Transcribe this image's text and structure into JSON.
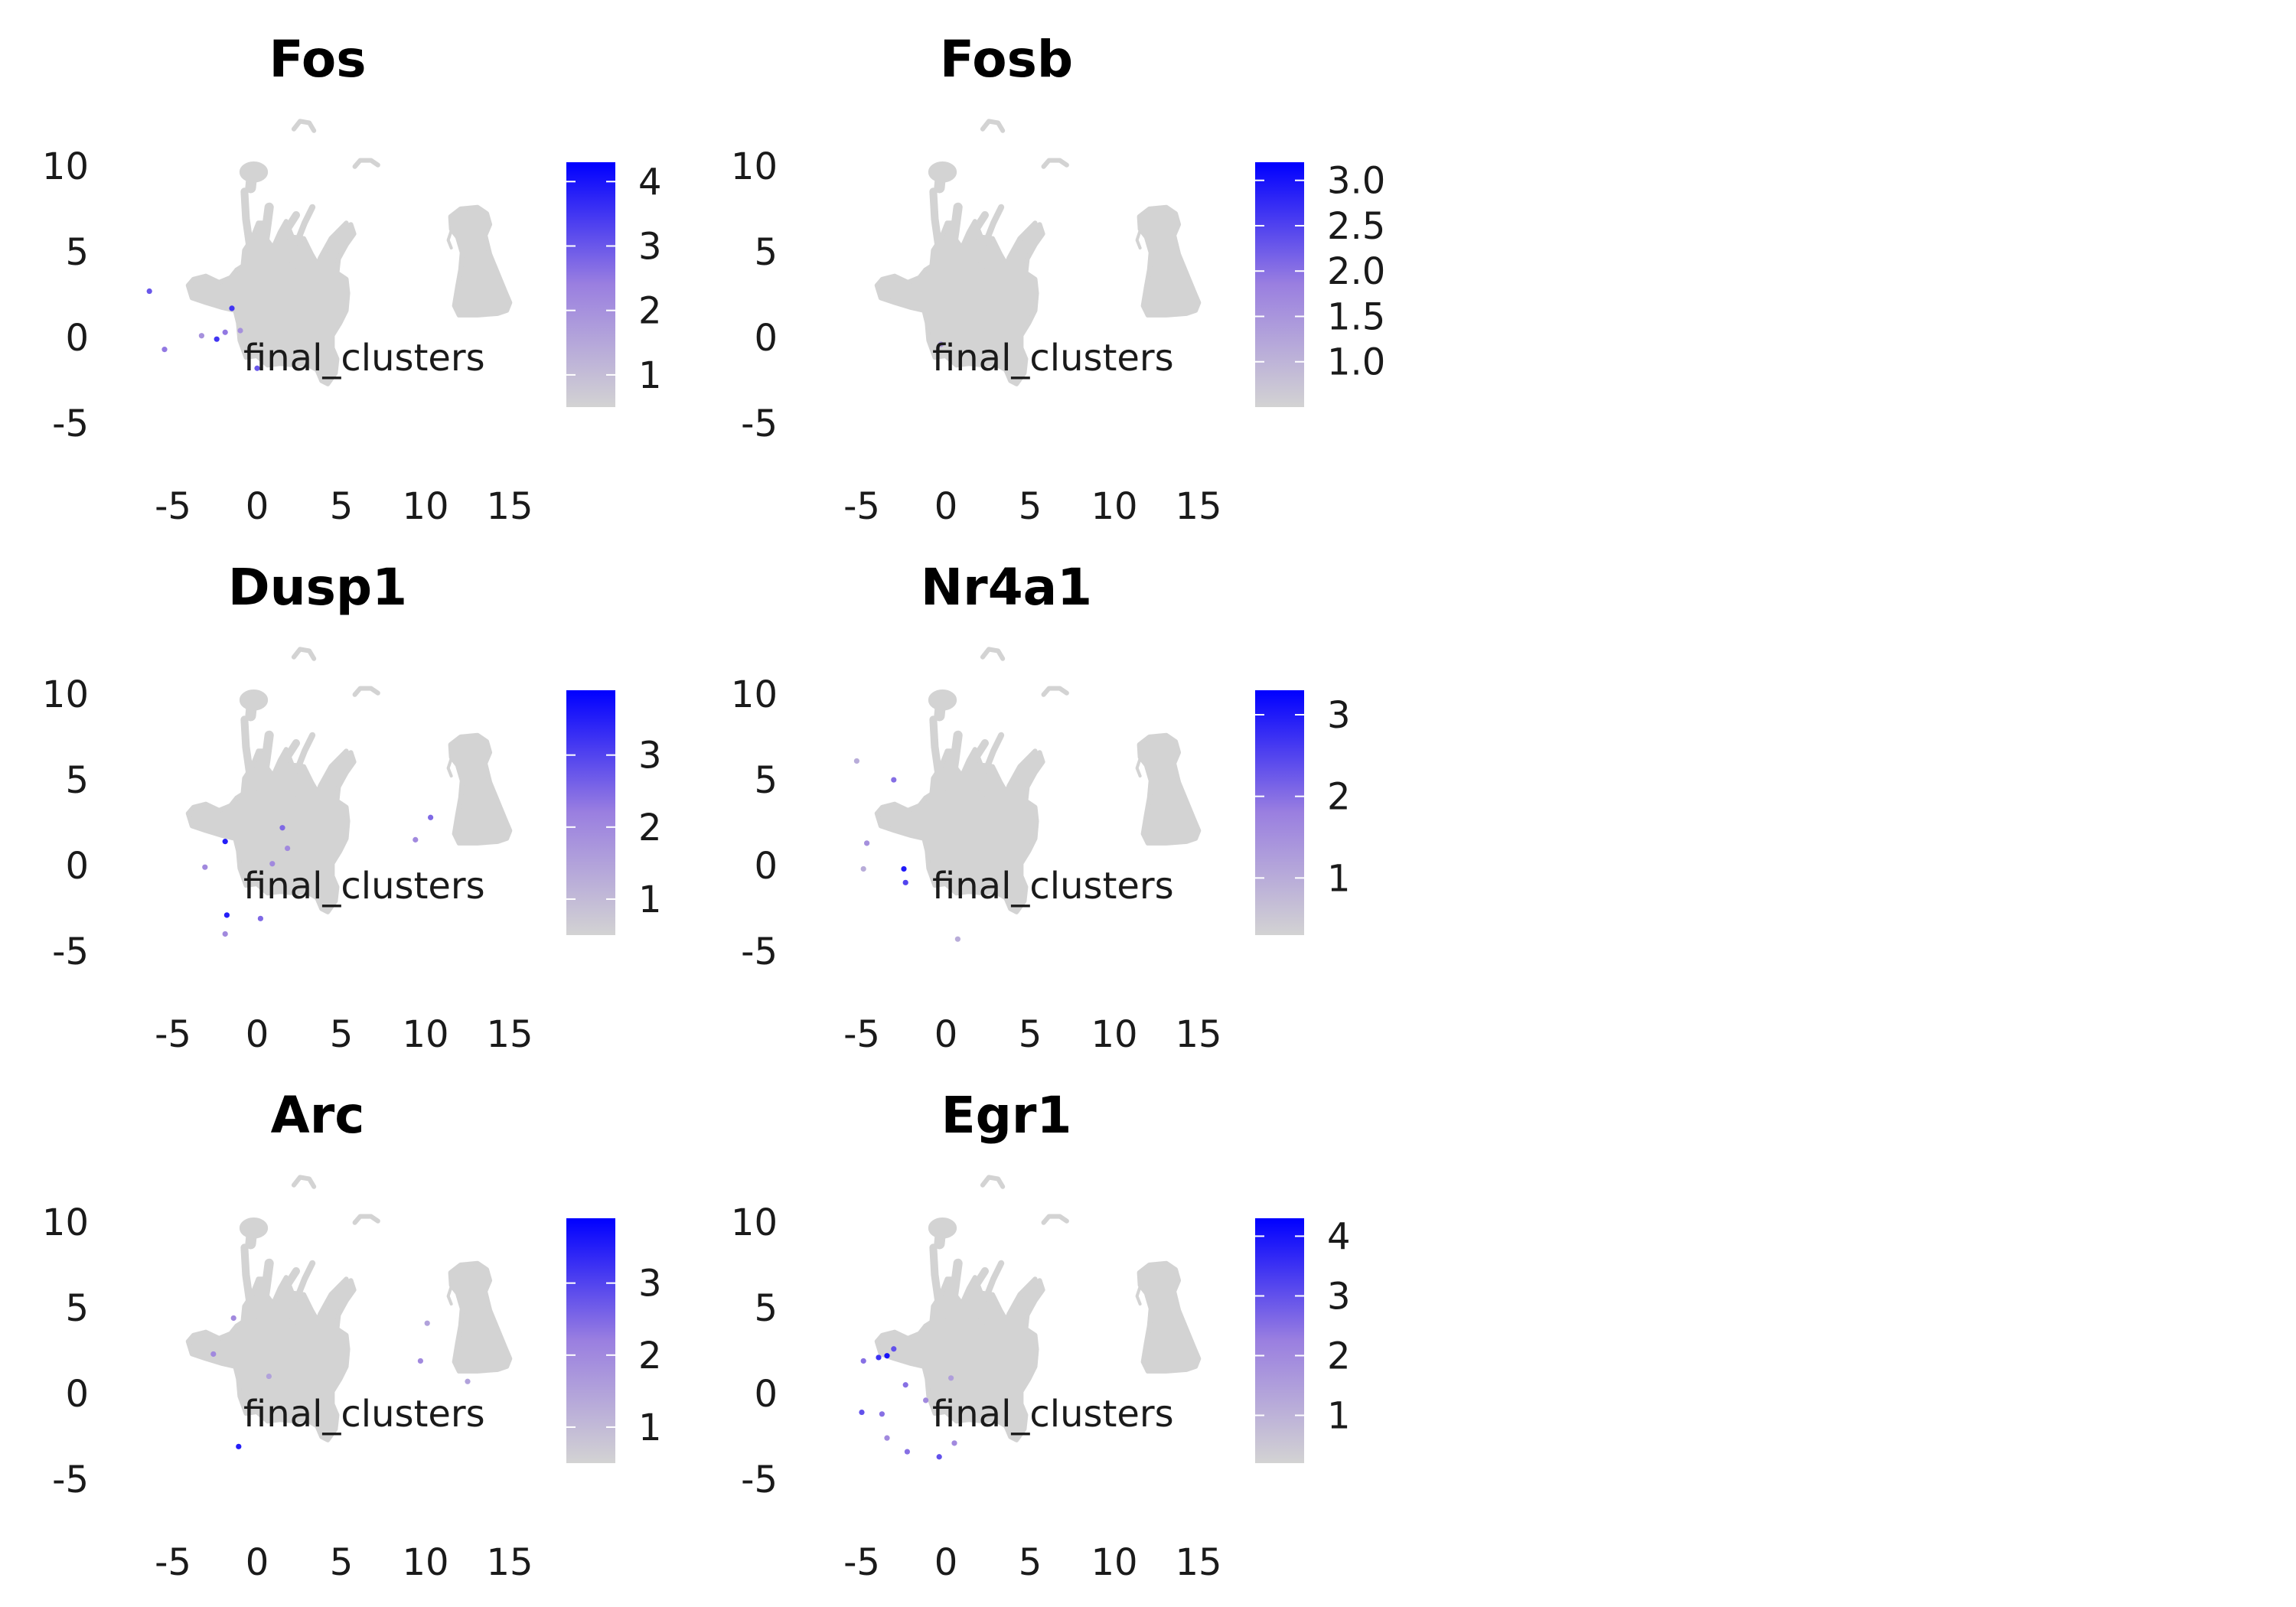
{
  "chart_data": [
    {
      "type": "scatter",
      "title": "Fos",
      "annotation": "final_clusters",
      "x_ticks": [
        "-5",
        "0",
        "5",
        "10",
        "15"
      ],
      "y_ticks": [
        "10",
        "5",
        "0",
        "-5"
      ],
      "colorbar": {
        "min": 0.5,
        "max": 4.3,
        "ticks": [
          "1",
          "2",
          "3",
          "4"
        ],
        "low_color": "#d3d3d3",
        "high_color": "#0000ff"
      },
      "expressing_points": [
        {
          "x": -6.4,
          "y": 2.7,
          "v": 3.0
        },
        {
          "x": -5.5,
          "y": -0.7,
          "v": 2.5
        },
        {
          "x": -2.4,
          "y": -0.1,
          "v": 3.5
        },
        {
          "x": -1.9,
          "y": 0.3,
          "v": 2.5
        },
        {
          "x": -1.5,
          "y": 1.7,
          "v": 3.5
        },
        {
          "x": -1.0,
          "y": 0.4,
          "v": 2.0
        },
        {
          "x": 0.0,
          "y": -1.8,
          "v": 3.0
        },
        {
          "x": -3.3,
          "y": 0.1,
          "v": 2.0
        }
      ]
    },
    {
      "type": "scatter",
      "title": "Fosb",
      "annotation": "final_clusters",
      "x_ticks": [
        "-5",
        "0",
        "5",
        "10",
        "15"
      ],
      "y_ticks": [
        "10",
        "5",
        "0",
        "-5"
      ],
      "colorbar": {
        "min": 0.5,
        "max": 3.2,
        "ticks": [
          "1.0",
          "1.5",
          "2.0",
          "2.5",
          "3.0"
        ],
        "low_color": "#d3d3d3",
        "high_color": "#0000ff"
      },
      "expressing_points": [
        {
          "x": -0.3,
          "y": -0.4,
          "v": 1.5
        }
      ]
    },
    {
      "type": "scatter",
      "title": "Dusp1",
      "annotation": "final_clusters",
      "x_ticks": [
        "-5",
        "0",
        "5",
        "10",
        "15"
      ],
      "y_ticks": [
        "10",
        "5",
        "0",
        "-5"
      ],
      "colorbar": {
        "min": 0.5,
        "max": 3.9,
        "ticks": [
          "1",
          "2",
          "3"
        ],
        "low_color": "#d3d3d3",
        "high_color": "#0000ff"
      },
      "expressing_points": [
        {
          "x": -3.1,
          "y": -0.1,
          "v": 2.0
        },
        {
          "x": -1.9,
          "y": 1.4,
          "v": 3.5
        },
        {
          "x": -1.8,
          "y": -2.9,
          "v": 3.5
        },
        {
          "x": -1.9,
          "y": -4.0,
          "v": 2.0
        },
        {
          "x": 0.2,
          "y": -3.1,
          "v": 2.5
        },
        {
          "x": 1.5,
          "y": 2.2,
          "v": 2.5
        },
        {
          "x": 1.8,
          "y": 1.0,
          "v": 2.0
        },
        {
          "x": 0.9,
          "y": 0.1,
          "v": 2.0
        },
        {
          "x": 10.3,
          "y": 2.8,
          "v": 2.5
        },
        {
          "x": 9.4,
          "y": 1.5,
          "v": 2.0
        }
      ]
    },
    {
      "type": "scatter",
      "title": "Nr4a1",
      "annotation": "final_clusters",
      "x_ticks": [
        "-5",
        "0",
        "5",
        "10",
        "15"
      ],
      "y_ticks": [
        "10",
        "5",
        "0",
        "-5"
      ],
      "colorbar": {
        "min": 0.3,
        "max": 3.3,
        "ticks": [
          "1",
          "2",
          "3"
        ],
        "low_color": "#d3d3d3",
        "high_color": "#0000ff"
      },
      "expressing_points": [
        {
          "x": -2.5,
          "y": -0.2,
          "v": 3.0
        },
        {
          "x": -2.4,
          "y": -1.0,
          "v": 2.5
        },
        {
          "x": -3.1,
          "y": 5.0,
          "v": 2.0
        },
        {
          "x": -4.7,
          "y": 1.3,
          "v": 1.5
        },
        {
          "x": -5.3,
          "y": 6.1,
          "v": 1.0
        },
        {
          "x": -4.9,
          "y": -0.2,
          "v": 1.0
        },
        {
          "x": 0.7,
          "y": -4.3,
          "v": 1.0
        }
      ]
    },
    {
      "type": "scatter",
      "title": "Arc",
      "annotation": "final_clusters",
      "x_ticks": [
        "-5",
        "0",
        "5",
        "10",
        "15"
      ],
      "y_ticks": [
        "10",
        "5",
        "0",
        "-5"
      ],
      "colorbar": {
        "min": 0.5,
        "max": 3.9,
        "ticks": [
          "1",
          "2",
          "3"
        ],
        "low_color": "#d3d3d3",
        "high_color": "#0000ff"
      },
      "expressing_points": [
        {
          "x": -1.1,
          "y": -3.1,
          "v": 3.5
        },
        {
          "x": -2.6,
          "y": 2.3,
          "v": 2.0
        },
        {
          "x": -1.4,
          "y": 4.4,
          "v": 2.0
        },
        {
          "x": 0.7,
          "y": 1.0,
          "v": 1.5
        },
        {
          "x": 9.7,
          "y": 1.9,
          "v": 2.0
        },
        {
          "x": 10.1,
          "y": 4.1,
          "v": 1.5
        },
        {
          "x": 12.5,
          "y": 0.7,
          "v": 1.5
        }
      ]
    },
    {
      "type": "scatter",
      "title": "Egr1",
      "annotation": "final_clusters",
      "x_ticks": [
        "-5",
        "0",
        "5",
        "10",
        "15"
      ],
      "y_ticks": [
        "10",
        "5",
        "0",
        "-5"
      ],
      "colorbar": {
        "min": 0.2,
        "max": 4.3,
        "ticks": [
          "1",
          "2",
          "3",
          "4"
        ],
        "low_color": "#d3d3d3",
        "high_color": "#0000ff"
      },
      "expressing_points": [
        {
          "x": -4.0,
          "y": 2.1,
          "v": 3.5
        },
        {
          "x": -3.5,
          "y": 2.2,
          "v": 4.0
        },
        {
          "x": -3.1,
          "y": 2.6,
          "v": 3.0
        },
        {
          "x": -4.9,
          "y": 1.9,
          "v": 2.5
        },
        {
          "x": -5.0,
          "y": -1.1,
          "v": 3.0
        },
        {
          "x": -3.8,
          "y": -1.2,
          "v": 2.5
        },
        {
          "x": -3.5,
          "y": -2.6,
          "v": 2.0
        },
        {
          "x": -2.3,
          "y": -3.4,
          "v": 2.5
        },
        {
          "x": -0.4,
          "y": -3.7,
          "v": 3.0
        },
        {
          "x": 0.5,
          "y": -2.9,
          "v": 2.0
        },
        {
          "x": -2.4,
          "y": 0.5,
          "v": 2.5
        },
        {
          "x": -1.2,
          "y": -0.4,
          "v": 2.0
        },
        {
          "x": 0.3,
          "y": 0.9,
          "v": 1.5
        }
      ]
    }
  ]
}
